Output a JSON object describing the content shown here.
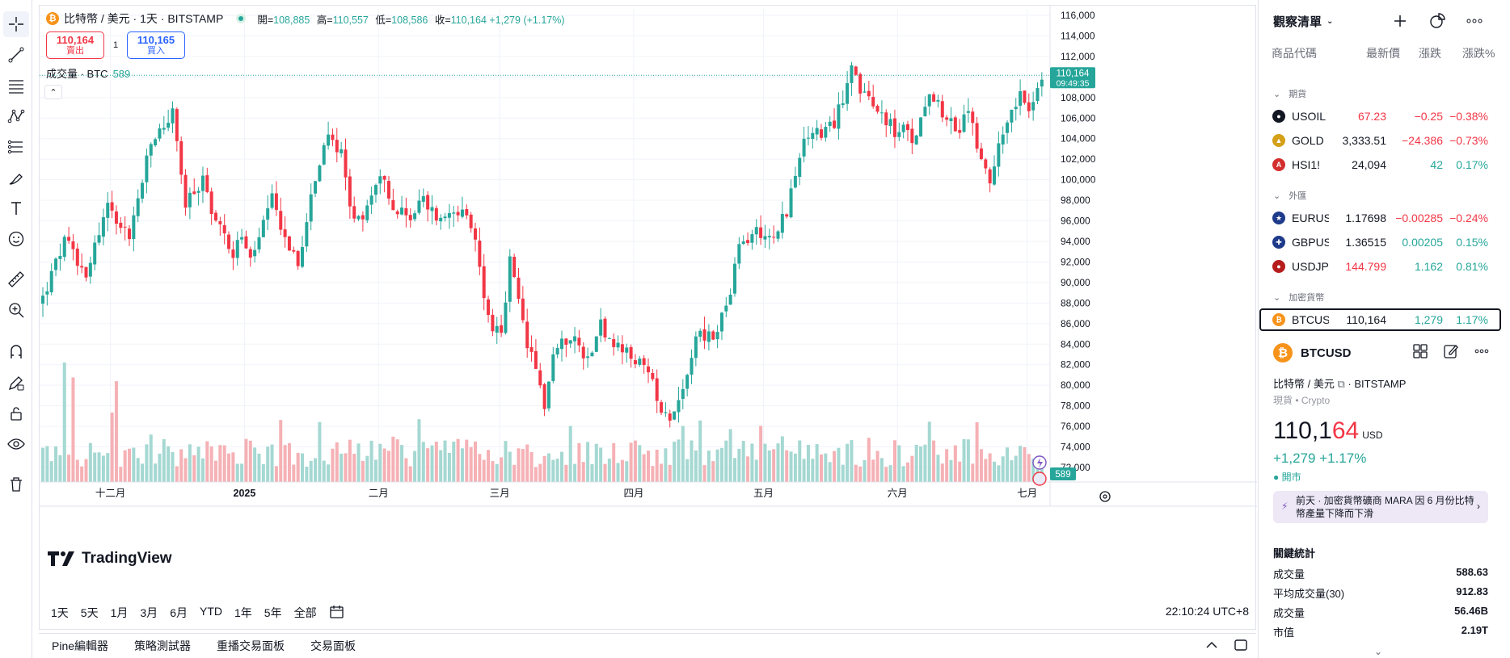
{
  "symbol": {
    "icon": "bitcoin-icon",
    "title": "比特幣 / 美元 · 1天 · BITSTAMP",
    "ohlc": [
      {
        "label": "開=",
        "value": "108,885"
      },
      {
        "label": "高=",
        "value": "110,557"
      },
      {
        "label": "低=",
        "value": "108,586"
      },
      {
        "label": "收=",
        "value": "110,164 +1,279 (+1.17%)"
      }
    ]
  },
  "trade": {
    "sell_price": "110,164",
    "sell_label": "賣出",
    "spread": "1",
    "buy_price": "110,165",
    "buy_label": "買入"
  },
  "volume_legend": {
    "label": "成交量 · BTC",
    "value": "589"
  },
  "watermark": "TradingView",
  "price_tag": {
    "price": "110,164",
    "countdown": "09:49:35"
  },
  "volume_tag": "589",
  "timeframes": [
    "1天",
    "5天",
    "1月",
    "3月",
    "6月",
    "YTD",
    "1年",
    "5年",
    "全部"
  ],
  "clock": "22:10:24 UTC+8",
  "bottom_tabs": [
    "Pine編輯器",
    "策略測試器",
    "重播交易面板",
    "交易面板"
  ],
  "chart_data": {
    "type": "candlestick",
    "ylim": [
      72000,
      116000
    ],
    "y_ticks": [
      "116,000",
      "114,000",
      "112,000",
      "110,000",
      "108,000",
      "106,000",
      "104,000",
      "102,000",
      "100,000",
      "98,000",
      "96,000",
      "94,000",
      "92,000",
      "90,000",
      "88,000",
      "86,000",
      "84,000",
      "82,000",
      "80,000",
      "78,000",
      "76,000",
      "74,000",
      "72,000"
    ],
    "x_ticks": [
      {
        "label": "十二月",
        "day": 16
      },
      {
        "label": "2025",
        "day": 47,
        "bold": true
      },
      {
        "label": "二月",
        "day": 78
      },
      {
        "label": "三月",
        "day": 106
      },
      {
        "label": "四月",
        "day": 137
      },
      {
        "label": "五月",
        "day": 167
      },
      {
        "label": "六月",
        "day": 198
      },
      {
        "label": "七月",
        "day": 228
      }
    ],
    "last_price": 110164,
    "keypoints": [
      [
        0,
        88500
      ],
      [
        5,
        94000
      ],
      [
        10,
        91000
      ],
      [
        15,
        97500
      ],
      [
        20,
        94500
      ],
      [
        25,
        103500
      ],
      [
        30,
        106500
      ],
      [
        33,
        97500
      ],
      [
        37,
        100000
      ],
      [
        40,
        96000
      ],
      [
        44,
        93000
      ],
      [
        46,
        94500
      ],
      [
        48,
        92000
      ],
      [
        53,
        98000
      ],
      [
        56,
        94500
      ],
      [
        59,
        91500
      ],
      [
        62,
        99000
      ],
      [
        66,
        104000
      ],
      [
        69,
        103000
      ],
      [
        71,
        97500
      ],
      [
        73,
        96000
      ],
      [
        76,
        98500
      ],
      [
        78,
        101000
      ],
      [
        81,
        97000
      ],
      [
        85,
        96500
      ],
      [
        88,
        98000
      ],
      [
        92,
        96000
      ],
      [
        95,
        97500
      ],
      [
        98,
        96000
      ],
      [
        100,
        94000
      ],
      [
        103,
        86500
      ],
      [
        106,
        84500
      ],
      [
        108,
        92000
      ],
      [
        110,
        88000
      ],
      [
        112,
        84000
      ],
      [
        115,
        80000
      ],
      [
        116,
        78000
      ],
      [
        118,
        83000
      ],
      [
        122,
        85000
      ],
      [
        126,
        82500
      ],
      [
        129,
        86500
      ],
      [
        131,
        84000
      ],
      [
        133,
        83500
      ],
      [
        137,
        82500
      ],
      [
        140,
        81000
      ],
      [
        143,
        78000
      ],
      [
        145,
        77000
      ],
      [
        148,
        79500
      ],
      [
        151,
        85000
      ],
      [
        155,
        84500
      ],
      [
        159,
        89000
      ],
      [
        161,
        93500
      ],
      [
        165,
        95000
      ],
      [
        169,
        94500
      ],
      [
        172,
        97000
      ],
      [
        175,
        102500
      ],
      [
        178,
        105000
      ],
      [
        180,
        104000
      ],
      [
        183,
        105500
      ],
      [
        185,
        108000
      ],
      [
        187,
        111800
      ],
      [
        189,
        108500
      ],
      [
        192,
        107000
      ],
      [
        195,
        106000
      ],
      [
        197,
        104500
      ],
      [
        199,
        105000
      ],
      [
        201,
        103500
      ],
      [
        203,
        106000
      ],
      [
        205,
        109000
      ],
      [
        207,
        107500
      ],
      [
        209,
        106000
      ],
      [
        212,
        104500
      ],
      [
        214,
        107000
      ],
      [
        216,
        103500
      ],
      [
        218,
        101000
      ],
      [
        219,
        99000
      ],
      [
        221,
        104000
      ],
      [
        224,
        107000
      ],
      [
        226,
        108500
      ],
      [
        228,
        106500
      ],
      [
        229,
        107000
      ],
      [
        231,
        110164
      ]
    ],
    "volume": {
      "max": 1600,
      "baseline": 589
    }
  },
  "watchlist": {
    "title": "觀察清單",
    "columns": [
      "商品代碼",
      "最新價",
      "漲跌",
      "漲跌%"
    ],
    "sections": [
      "期貨",
      "外匯",
      "加密貨幣"
    ],
    "rows": [
      {
        "symbol": "USOIL",
        "last": "67.23",
        "change": "−0.25",
        "pct": "−0.38%",
        "dir": "neg",
        "icon_color": "#131722",
        "icon": "oil-drop-icon"
      },
      {
        "symbol": "GOLD",
        "last": "3,333.51",
        "change": "−24.386",
        "pct": "−0.73%",
        "dir": "neg",
        "icon_color": "#d4a017",
        "icon": "gold-bars-icon"
      },
      {
        "symbol": "HSI1!",
        "last": "24,094",
        "change": "42",
        "pct": "0.17%",
        "dir": "pos",
        "icon_color": "#d32f2f",
        "icon": "hsi-logo-icon"
      },
      {
        "symbol": "EURUSD",
        "last": "1.17698",
        "change": "−0.00285",
        "pct": "−0.24%",
        "dir": "neg",
        "icon_color": "#1e3a8a",
        "icon": "eu-us-flag-icon"
      },
      {
        "symbol": "GBPUSD",
        "last": "1.36515",
        "change": "0.00205",
        "pct": "0.15%",
        "dir": "pos",
        "icon_color": "#1e3a8a",
        "icon": "uk-us-flag-icon"
      },
      {
        "symbol": "USDJPY",
        "last": "144.799",
        "change": "1.162",
        "pct": "0.81%",
        "dir": "pos",
        "icon_color": "#b71c1c",
        "icon": "us-jp-flag-icon"
      },
      {
        "symbol": "BTCUSD",
        "last": "110,164",
        "change": "1,279",
        "pct": "1.17%",
        "dir": "pos",
        "icon_color": "#f7931a",
        "icon": "bitcoin-icon"
      }
    ]
  },
  "detail": {
    "symbol": "BTCUSD",
    "name": "比特幣 / 美元",
    "exchange": "BITSTAMP",
    "type": "現貨 • Crypto",
    "price_main": "110,1",
    "price_tail": "64",
    "currency": "USD",
    "change": "+1,279  +1.17%",
    "status": "開市",
    "news": "前天 · 加密貨幣礦商 MARA 因 6 月份比特幣產量下降而下滑",
    "stats_title": "關鍵統計",
    "stats": [
      {
        "label": "成交量",
        "value": "588.63"
      },
      {
        "label": "平均成交量(30)",
        "value": "912.83"
      },
      {
        "label": "成交量",
        "value": "56.46B"
      },
      {
        "label": "市值",
        "value": "2.19T"
      }
    ]
  },
  "colors": {
    "up": "#26a69a",
    "down": "#f23645",
    "up_vol": "#a5d8d2",
    "down_vol": "#f5b1b5",
    "accent": "#2962ff"
  }
}
